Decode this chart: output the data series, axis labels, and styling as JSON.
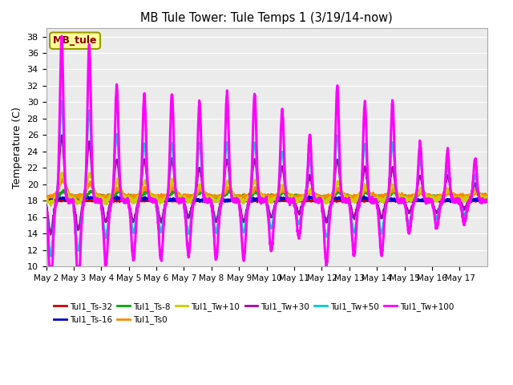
{
  "title": "MB Tule Tower: Tule Temps 1 (3/19/14-now)",
  "ylabel": "Temperature (C)",
  "ylim": [
    10,
    39
  ],
  "yticks": [
    10,
    12,
    14,
    16,
    18,
    20,
    22,
    24,
    26,
    28,
    30,
    32,
    34,
    36,
    38
  ],
  "x_tick_labels": [
    "May 2",
    "May 3",
    "May 4",
    "May 5",
    "May 6",
    "May 7",
    "May 8",
    "May 9",
    "May 10",
    "May 11",
    "May 12",
    "May 13",
    "May 14",
    "May 15",
    "May 16",
    "May 17"
  ],
  "background_color": "#ffffff",
  "plot_bg_color": "#ebebeb",
  "grid_color": "#ffffff",
  "legend_box_color": "#ffff99",
  "legend_box_edge": "#999900",
  "legend_label": "MB_tule",
  "legend_label_color": "#880000",
  "series": [
    {
      "name": "Tul1_Ts-32",
      "color": "#cc0000",
      "lw": 1.8
    },
    {
      "name": "Tul1_Ts-16",
      "color": "#0000cc",
      "lw": 1.8
    },
    {
      "name": "Tul1_Ts-8",
      "color": "#00aa00",
      "lw": 1.8
    },
    {
      "name": "Tul1_Ts0",
      "color": "#ff8800",
      "lw": 1.8
    },
    {
      "name": "Tul1_Tw+10",
      "color": "#cccc00",
      "lw": 1.8
    },
    {
      "name": "Tul1_Tw+30",
      "color": "#aa00aa",
      "lw": 1.8
    },
    {
      "name": "Tul1_Tw+50",
      "color": "#00cccc",
      "lw": 1.8
    },
    {
      "name": "Tul1_Tw+100",
      "color": "#ff00ff",
      "lw": 2.2
    }
  ]
}
